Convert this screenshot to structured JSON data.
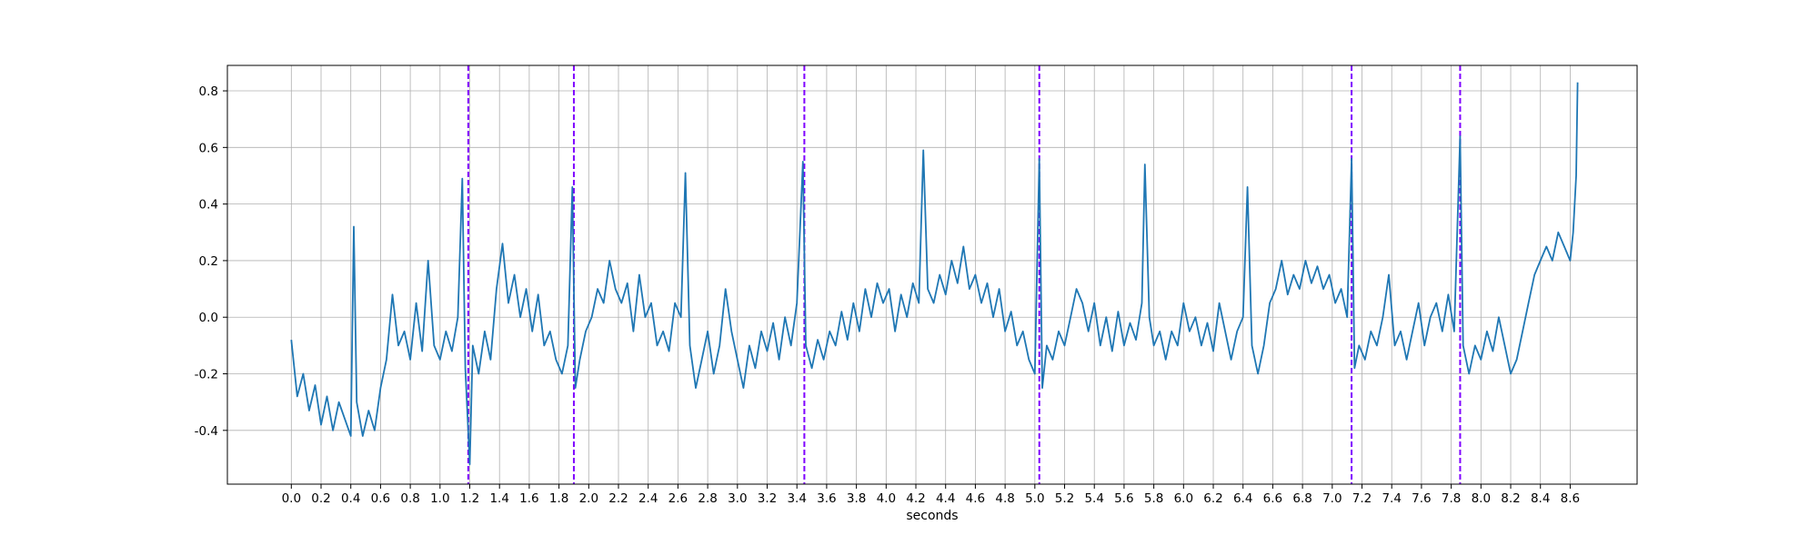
{
  "chart_data": {
    "type": "line",
    "title": "",
    "xlabel": "seconds",
    "ylabel": "",
    "xlim": [
      -0.43,
      9.05
    ],
    "ylim": [
      -0.59,
      0.89
    ],
    "grid": true,
    "legend": "none",
    "x_ticks": [
      "0.0",
      "0.2",
      "0.4",
      "0.6",
      "0.8",
      "1.0",
      "1.2",
      "1.4",
      "1.6",
      "1.8",
      "2.0",
      "2.2",
      "2.4",
      "2.6",
      "2.8",
      "3.0",
      "3.2",
      "3.4",
      "3.6",
      "3.8",
      "4.0",
      "4.2",
      "4.4",
      "4.6",
      "4.8",
      "5.0",
      "5.2",
      "5.4",
      "5.6",
      "5.8",
      "6.0",
      "6.2",
      "6.4",
      "6.6",
      "6.8",
      "7.0",
      "7.2",
      "7.4",
      "7.6",
      "7.8",
      "8.0",
      "8.2",
      "8.4",
      "8.6"
    ],
    "y_ticks": [
      "-0.4",
      "-0.2",
      "0.0",
      "0.2",
      "0.4",
      "0.6",
      "0.8"
    ],
    "markers": [
      1.19,
      1.9,
      3.45,
      5.03,
      7.13,
      7.86
    ],
    "colors": {
      "series": "#1f77b4",
      "markers": "#7f00ff",
      "grid": "#b0b0b0"
    },
    "series": [
      {
        "points": [
          [
            0.0,
            -0.08
          ],
          [
            0.04,
            -0.28
          ],
          [
            0.08,
            -0.2
          ],
          [
            0.12,
            -0.33
          ],
          [
            0.16,
            -0.24
          ],
          [
            0.2,
            -0.38
          ],
          [
            0.24,
            -0.28
          ],
          [
            0.28,
            -0.4
          ],
          [
            0.32,
            -0.3
          ],
          [
            0.36,
            -0.36
          ],
          [
            0.4,
            -0.42
          ],
          [
            0.42,
            0.32
          ],
          [
            0.44,
            -0.3
          ],
          [
            0.48,
            -0.42
          ],
          [
            0.52,
            -0.33
          ],
          [
            0.56,
            -0.4
          ],
          [
            0.6,
            -0.25
          ],
          [
            0.64,
            -0.15
          ],
          [
            0.68,
            0.08
          ],
          [
            0.72,
            -0.1
          ],
          [
            0.76,
            -0.05
          ],
          [
            0.8,
            -0.15
          ],
          [
            0.84,
            0.05
          ],
          [
            0.88,
            -0.12
          ],
          [
            0.92,
            0.2
          ],
          [
            0.96,
            -0.1
          ],
          [
            1.0,
            -0.15
          ],
          [
            1.04,
            -0.05
          ],
          [
            1.08,
            -0.12
          ],
          [
            1.12,
            0.0
          ],
          [
            1.15,
            0.49
          ],
          [
            1.17,
            -0.18
          ],
          [
            1.2,
            -0.52
          ],
          [
            1.22,
            -0.1
          ],
          [
            1.26,
            -0.2
          ],
          [
            1.3,
            -0.05
          ],
          [
            1.34,
            -0.15
          ],
          [
            1.38,
            0.1
          ],
          [
            1.42,
            0.26
          ],
          [
            1.46,
            0.05
          ],
          [
            1.5,
            0.15
          ],
          [
            1.54,
            0.0
          ],
          [
            1.58,
            0.1
          ],
          [
            1.62,
            -0.05
          ],
          [
            1.66,
            0.08
          ],
          [
            1.7,
            -0.1
          ],
          [
            1.74,
            -0.05
          ],
          [
            1.78,
            -0.15
          ],
          [
            1.82,
            -0.2
          ],
          [
            1.86,
            -0.1
          ],
          [
            1.89,
            0.46
          ],
          [
            1.91,
            -0.25
          ],
          [
            1.94,
            -0.15
          ],
          [
            1.98,
            -0.05
          ],
          [
            2.02,
            0.0
          ],
          [
            2.06,
            0.1
          ],
          [
            2.1,
            0.05
          ],
          [
            2.14,
            0.2
          ],
          [
            2.18,
            0.1
          ],
          [
            2.22,
            0.05
          ],
          [
            2.26,
            0.12
          ],
          [
            2.3,
            -0.05
          ],
          [
            2.34,
            0.15
          ],
          [
            2.38,
            0.0
          ],
          [
            2.42,
            0.05
          ],
          [
            2.46,
            -0.1
          ],
          [
            2.5,
            -0.05
          ],
          [
            2.54,
            -0.12
          ],
          [
            2.58,
            0.05
          ],
          [
            2.62,
            0.0
          ],
          [
            2.65,
            0.51
          ],
          [
            2.68,
            -0.1
          ],
          [
            2.72,
            -0.25
          ],
          [
            2.76,
            -0.15
          ],
          [
            2.8,
            -0.05
          ],
          [
            2.84,
            -0.2
          ],
          [
            2.88,
            -0.1
          ],
          [
            2.92,
            0.1
          ],
          [
            2.96,
            -0.05
          ],
          [
            3.0,
            -0.15
          ],
          [
            3.04,
            -0.25
          ],
          [
            3.08,
            -0.1
          ],
          [
            3.12,
            -0.18
          ],
          [
            3.16,
            -0.05
          ],
          [
            3.2,
            -0.12
          ],
          [
            3.24,
            -0.02
          ],
          [
            3.28,
            -0.15
          ],
          [
            3.32,
            0.0
          ],
          [
            3.36,
            -0.1
          ],
          [
            3.4,
            0.05
          ],
          [
            3.44,
            0.55
          ],
          [
            3.46,
            -0.1
          ],
          [
            3.5,
            -0.18
          ],
          [
            3.54,
            -0.08
          ],
          [
            3.58,
            -0.15
          ],
          [
            3.62,
            -0.05
          ],
          [
            3.66,
            -0.1
          ],
          [
            3.7,
            0.02
          ],
          [
            3.74,
            -0.08
          ],
          [
            3.78,
            0.05
          ],
          [
            3.82,
            -0.05
          ],
          [
            3.86,
            0.1
          ],
          [
            3.9,
            0.0
          ],
          [
            3.94,
            0.12
          ],
          [
            3.98,
            0.05
          ],
          [
            4.02,
            0.1
          ],
          [
            4.06,
            -0.05
          ],
          [
            4.1,
            0.08
          ],
          [
            4.14,
            0.0
          ],
          [
            4.18,
            0.12
          ],
          [
            4.22,
            0.05
          ],
          [
            4.25,
            0.59
          ],
          [
            4.28,
            0.1
          ],
          [
            4.32,
            0.05
          ],
          [
            4.36,
            0.15
          ],
          [
            4.4,
            0.08
          ],
          [
            4.44,
            0.2
          ],
          [
            4.48,
            0.12
          ],
          [
            4.52,
            0.25
          ],
          [
            4.56,
            0.1
          ],
          [
            4.6,
            0.15
          ],
          [
            4.64,
            0.05
          ],
          [
            4.68,
            0.12
          ],
          [
            4.72,
            0.0
          ],
          [
            4.76,
            0.1
          ],
          [
            4.8,
            -0.05
          ],
          [
            4.84,
            0.02
          ],
          [
            4.88,
            -0.1
          ],
          [
            4.92,
            -0.05
          ],
          [
            4.96,
            -0.15
          ],
          [
            5.0,
            -0.2
          ],
          [
            5.03,
            0.56
          ],
          [
            5.05,
            -0.25
          ],
          [
            5.08,
            -0.1
          ],
          [
            5.12,
            -0.15
          ],
          [
            5.16,
            -0.05
          ],
          [
            5.2,
            -0.1
          ],
          [
            5.24,
            0.0
          ],
          [
            5.28,
            0.1
          ],
          [
            5.32,
            0.05
          ],
          [
            5.36,
            -0.05
          ],
          [
            5.4,
            0.05
          ],
          [
            5.44,
            -0.1
          ],
          [
            5.48,
            0.0
          ],
          [
            5.52,
            -0.12
          ],
          [
            5.56,
            0.02
          ],
          [
            5.6,
            -0.1
          ],
          [
            5.64,
            -0.02
          ],
          [
            5.68,
            -0.08
          ],
          [
            5.72,
            0.05
          ],
          [
            5.74,
            0.54
          ],
          [
            5.77,
            0.0
          ],
          [
            5.8,
            -0.1
          ],
          [
            5.84,
            -0.05
          ],
          [
            5.88,
            -0.15
          ],
          [
            5.92,
            -0.05
          ],
          [
            5.96,
            -0.1
          ],
          [
            6.0,
            0.05
          ],
          [
            6.04,
            -0.05
          ],
          [
            6.08,
            0.0
          ],
          [
            6.12,
            -0.1
          ],
          [
            6.16,
            -0.02
          ],
          [
            6.2,
            -0.12
          ],
          [
            6.24,
            0.05
          ],
          [
            6.28,
            -0.05
          ],
          [
            6.32,
            -0.15
          ],
          [
            6.36,
            -0.05
          ],
          [
            6.4,
            0.0
          ],
          [
            6.43,
            0.46
          ],
          [
            6.46,
            -0.1
          ],
          [
            6.5,
            -0.2
          ],
          [
            6.54,
            -0.1
          ],
          [
            6.58,
            0.05
          ],
          [
            6.62,
            0.1
          ],
          [
            6.66,
            0.2
          ],
          [
            6.7,
            0.08
          ],
          [
            6.74,
            0.15
          ],
          [
            6.78,
            0.1
          ],
          [
            6.82,
            0.2
          ],
          [
            6.86,
            0.12
          ],
          [
            6.9,
            0.18
          ],
          [
            6.94,
            0.1
          ],
          [
            6.98,
            0.15
          ],
          [
            7.02,
            0.05
          ],
          [
            7.06,
            0.1
          ],
          [
            7.1,
            0.0
          ],
          [
            7.13,
            0.56
          ],
          [
            7.15,
            -0.18
          ],
          [
            7.18,
            -0.1
          ],
          [
            7.22,
            -0.15
          ],
          [
            7.26,
            -0.05
          ],
          [
            7.3,
            -0.1
          ],
          [
            7.34,
            0.0
          ],
          [
            7.38,
            0.15
          ],
          [
            7.42,
            -0.1
          ],
          [
            7.46,
            -0.05
          ],
          [
            7.5,
            -0.15
          ],
          [
            7.54,
            -0.05
          ],
          [
            7.58,
            0.05
          ],
          [
            7.62,
            -0.1
          ],
          [
            7.66,
            0.0
          ],
          [
            7.7,
            0.05
          ],
          [
            7.74,
            -0.05
          ],
          [
            7.78,
            0.08
          ],
          [
            7.82,
            -0.05
          ],
          [
            7.86,
            0.64
          ],
          [
            7.88,
            -0.1
          ],
          [
            7.92,
            -0.2
          ],
          [
            7.96,
            -0.1
          ],
          [
            8.0,
            -0.15
          ],
          [
            8.04,
            -0.05
          ],
          [
            8.08,
            -0.12
          ],
          [
            8.12,
            0.0
          ],
          [
            8.16,
            -0.1
          ],
          [
            8.2,
            -0.2
          ],
          [
            8.24,
            -0.15
          ],
          [
            8.28,
            -0.05
          ],
          [
            8.32,
            0.05
          ],
          [
            8.36,
            0.15
          ],
          [
            8.4,
            0.2
          ],
          [
            8.44,
            0.25
          ],
          [
            8.48,
            0.2
          ],
          [
            8.52,
            0.3
          ],
          [
            8.56,
            0.25
          ],
          [
            8.6,
            0.2
          ],
          [
            8.62,
            0.3
          ],
          [
            8.64,
            0.5
          ],
          [
            8.65,
            0.83
          ]
        ]
      }
    ]
  }
}
